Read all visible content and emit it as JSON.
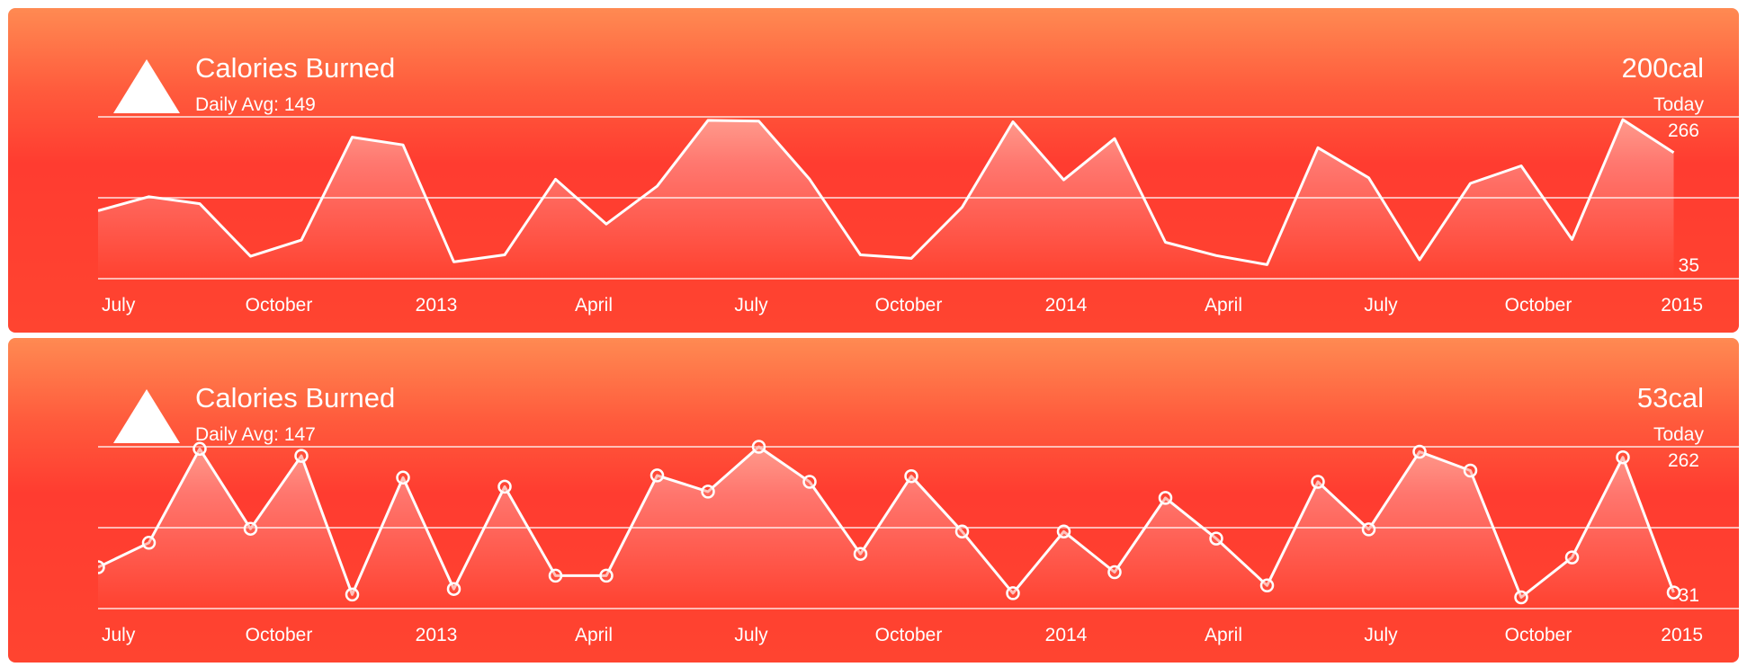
{
  "colors": {
    "gradient_top": "#ff8a52",
    "gradient_mid": "#ff3c30",
    "line": "#ffffff",
    "text": "#ffffff"
  },
  "cards": [
    {
      "icon": "triangle-up-icon",
      "title": "Calories Burned",
      "subtitle": "Daily Avg: 149",
      "value": "200cal",
      "period": "Today",
      "ymax_label": "266",
      "ymin_label": "35"
    },
    {
      "icon": "triangle-up-icon",
      "title": "Calories Burned",
      "subtitle": "Daily Avg: 147",
      "value": "53cal",
      "period": "Today",
      "ymax_label": "262",
      "ymin_label": "31"
    }
  ],
  "chart_data": [
    {
      "type": "area",
      "title": "Calories Burned",
      "x_tick_labels": [
        "July",
        "October",
        "2013",
        "April",
        "July",
        "October",
        "2014",
        "April",
        "July",
        "October",
        "2015"
      ],
      "ylim": [
        35,
        266
      ],
      "markers": false,
      "grid": true,
      "values": [
        132,
        152,
        142,
        67,
        90,
        237,
        226,
        59,
        69,
        177,
        113,
        167,
        261,
        260,
        177,
        69,
        64,
        137,
        259,
        176,
        235,
        87,
        68,
        55,
        222,
        179,
        62,
        171,
        196,
        91,
        262,
        215
      ]
    },
    {
      "type": "area",
      "title": "Calories Burned",
      "x_tick_labels": [
        "July",
        "October",
        "2013",
        "April",
        "July",
        "October",
        "2014",
        "April",
        "July",
        "October",
        "2015"
      ],
      "ylim": [
        31,
        262
      ],
      "markers": true,
      "grid": true,
      "values": [
        90,
        125,
        259,
        145,
        249,
        51,
        218,
        59,
        205,
        78,
        78,
        221,
        198,
        262,
        212,
        109,
        220,
        141,
        53,
        141,
        83,
        189,
        131,
        64,
        212,
        144,
        255,
        228,
        47,
        104,
        247,
        54
      ]
    }
  ]
}
